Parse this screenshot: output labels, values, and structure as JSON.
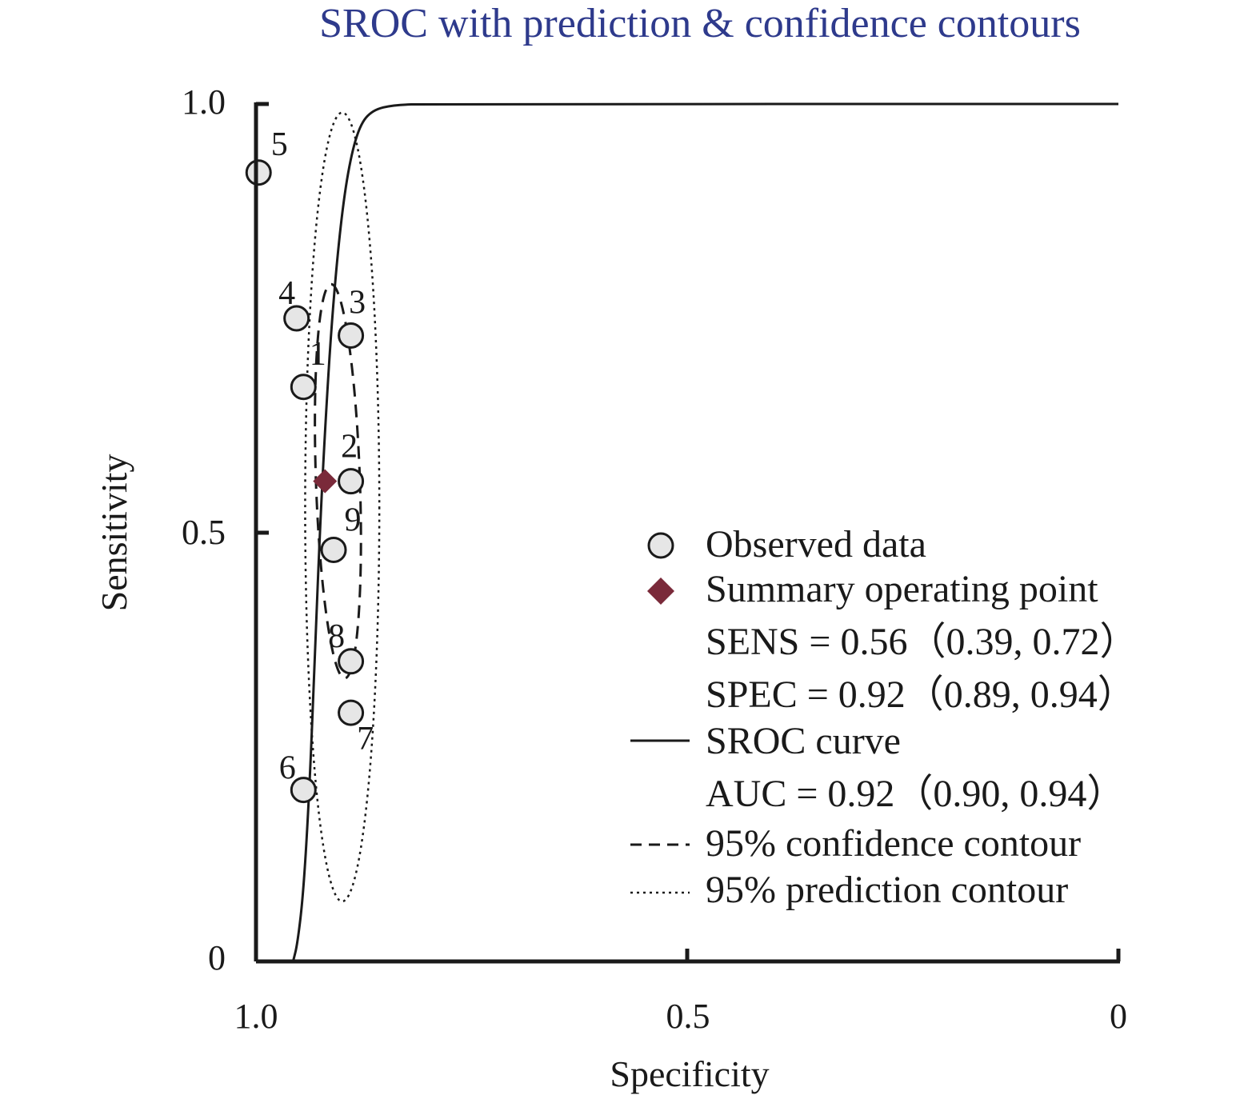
{
  "chart_data": {
    "type": "scatter",
    "title": "SROC with prediction & confidence contours",
    "xlabel": "Specificity",
    "ylabel": "Sensitivity",
    "xlim": [
      1.0,
      0
    ],
    "ylim": [
      0,
      1.0
    ],
    "x_reversed": true,
    "x_ticks": [
      "1.0",
      "0.5",
      "0"
    ],
    "x_tick_values": [
      1.0,
      0.5,
      0
    ],
    "y_ticks": [
      "0",
      "0.5",
      "1.0"
    ],
    "y_tick_values": [
      0,
      0.5,
      1.0
    ],
    "grid": false,
    "legend_placement": "right-center",
    "colors": {
      "title": "#2e3a8c",
      "summary_point": "#7a2a3a",
      "observed_fill": "#e6e6e6",
      "line": "#1a1a1a"
    },
    "observed": [
      {
        "label": "1",
        "spec": 0.945,
        "sens": 0.67
      },
      {
        "label": "2",
        "spec": 0.89,
        "sens": 0.56
      },
      {
        "label": "3",
        "spec": 0.89,
        "sens": 0.73
      },
      {
        "label": "4",
        "spec": 0.953,
        "sens": 0.75
      },
      {
        "label": "5",
        "spec": 0.997,
        "sens": 0.92
      },
      {
        "label": "6",
        "spec": 0.945,
        "sens": 0.2
      },
      {
        "label": "7",
        "spec": 0.89,
        "sens": 0.29
      },
      {
        "label": "8",
        "spec": 0.89,
        "sens": 0.35
      },
      {
        "label": "9",
        "spec": 0.91,
        "sens": 0.48
      }
    ],
    "summary_point": {
      "spec": 0.92,
      "sens": 0.56
    },
    "sroc_curve": [
      [
        0.957,
        0.0
      ],
      [
        0.952,
        0.02
      ],
      [
        0.945,
        0.08
      ],
      [
        0.938,
        0.2
      ],
      [
        0.932,
        0.35
      ],
      [
        0.926,
        0.5
      ],
      [
        0.92,
        0.62
      ],
      [
        0.912,
        0.75
      ],
      [
        0.902,
        0.86
      ],
      [
        0.892,
        0.93
      ],
      [
        0.88,
        0.975
      ],
      [
        0.865,
        0.993
      ],
      [
        0.84,
        0.999
      ],
      [
        0.8,
        1.0
      ],
      [
        0.0,
        1.0
      ]
    ],
    "confidence_contour": {
      "center_spec": 0.905,
      "center_sens": 0.56,
      "half_width_spec": 0.0255,
      "half_height_sens": 0.23
    },
    "prediction_contour": {
      "center_spec": 0.9,
      "center_sens": 0.53,
      "half_width_spec": 0.043,
      "half_height_sens": 0.46
    },
    "legend": {
      "observed": "Observed data",
      "summary": "Summary operating point",
      "sens": "SENS = 0.56（0.39, 0.72）",
      "spec": "SPEC = 0.92（0.89, 0.94）",
      "sroc": "SROC curve",
      "auc": "AUC = 0.92（0.90, 0.94）",
      "confidence": "95% confidence contour",
      "prediction": "95% prediction contour"
    }
  }
}
